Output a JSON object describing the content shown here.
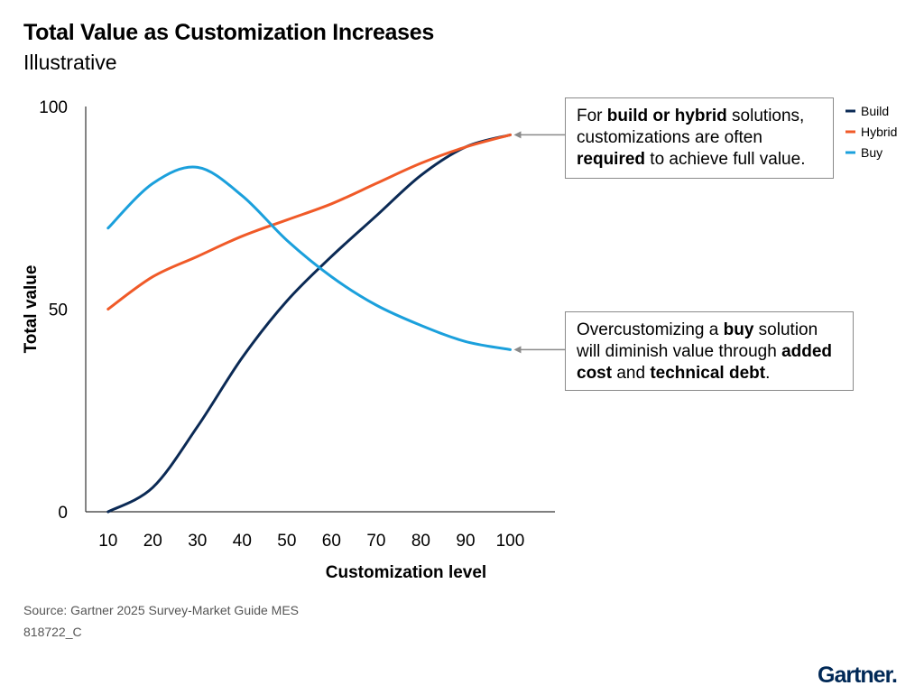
{
  "chart_data": {
    "type": "line",
    "title": "Total Value as Customization Increases",
    "subtitle": "Illustrative",
    "xlabel": "Customization level",
    "ylabel": "Total value",
    "x": [
      10,
      20,
      30,
      40,
      50,
      60,
      70,
      80,
      90,
      100
    ],
    "xlim": [
      5,
      110
    ],
    "ylim": [
      0,
      100
    ],
    "xticks": [
      "10",
      "20",
      "30",
      "40",
      "50",
      "60",
      "70",
      "80",
      "90",
      "100"
    ],
    "yticks": [
      "0",
      "50",
      "100"
    ],
    "series": [
      {
        "name": "Build",
        "color": "#0b2a55",
        "values": [
          0,
          6,
          21,
          38,
          52,
          63,
          73,
          83,
          90,
          93
        ]
      },
      {
        "name": "Hybrid",
        "color": "#f05a28",
        "values": [
          50,
          58,
          63,
          68,
          72,
          76,
          81,
          86,
          90,
          93
        ]
      },
      {
        "name": "Buy",
        "color": "#1ba0dc",
        "values": [
          70,
          81,
          85,
          78,
          67,
          58,
          51,
          46,
          42,
          40
        ]
      }
    ],
    "legend_position": "top-right",
    "annotations": [
      {
        "target": "Build/Hybrid at 100",
        "parts": [
          {
            "text": "For ",
            "bold": false
          },
          {
            "text": "build or hybrid",
            "bold": true
          },
          {
            "text": " solutions, customizations are often ",
            "bold": false
          },
          {
            "text": "required",
            "bold": true
          },
          {
            "text": " to achieve full value.",
            "bold": false
          }
        ]
      },
      {
        "target": "Buy at 100",
        "parts": [
          {
            "text": "Overcustomizing a ",
            "bold": false
          },
          {
            "text": "buy",
            "bold": true
          },
          {
            "text": " solution will diminish value through ",
            "bold": false
          },
          {
            "text": "added cost",
            "bold": true
          },
          {
            "text": " and ",
            "bold": false
          },
          {
            "text": "technical debt",
            "bold": true
          },
          {
            "text": ".",
            "bold": false
          }
        ]
      }
    ]
  },
  "footer": {
    "source": "Source: Gartner 2025 Survey-Market Guide MES",
    "doc_id": "818722_C",
    "logo": "Gartner",
    "logo_dot": "."
  }
}
